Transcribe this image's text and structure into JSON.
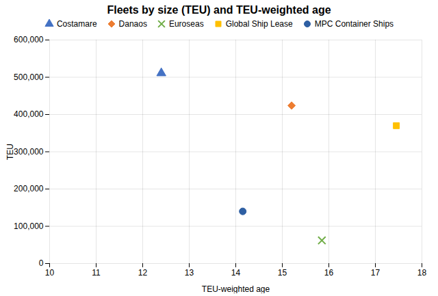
{
  "chart_data": {
    "type": "scatter",
    "title": "Fleets by size (TEU) and TEU-weighted age",
    "xlabel": "TEU-weighted age",
    "ylabel": "TEU",
    "xlim": [
      10,
      18
    ],
    "ylim": [
      0,
      600000
    ],
    "xticks": [
      10,
      11,
      12,
      13,
      14,
      15,
      16,
      17,
      18
    ],
    "yticks": [
      0,
      {
        "value": 100000,
        "label": "100,000"
      },
      {
        "value": 200000,
        "label": "200,000"
      },
      {
        "value": 300000,
        "label": "300,000"
      },
      {
        "value": 400000,
        "label": "400,000"
      },
      {
        "value": 500000,
        "label": "500,000"
      },
      {
        "value": 600000,
        "label": "600,000"
      }
    ],
    "grid": true,
    "legend": "top",
    "series": [
      {
        "name": "Costamare",
        "color": "#4472C4",
        "marker": "triangle",
        "x": [
          12.4
        ],
        "values": [
          511000
        ]
      },
      {
        "name": "Danaos",
        "color": "#ED7D31",
        "marker": "diamond",
        "x": [
          15.2
        ],
        "values": [
          424000
        ]
      },
      {
        "name": "Euroseas",
        "color": "#70AD47",
        "marker": "x",
        "x": [
          15.85
        ],
        "values": [
          62000
        ]
      },
      {
        "name": "Global Ship Lease",
        "color": "#FFC000",
        "marker": "square",
        "x": [
          17.45
        ],
        "values": [
          370000
        ]
      },
      {
        "name": "MPC Container Ships",
        "color": "#2E5FA3",
        "marker": "circle",
        "x": [
          14.15
        ],
        "values": [
          140000
        ]
      }
    ]
  }
}
